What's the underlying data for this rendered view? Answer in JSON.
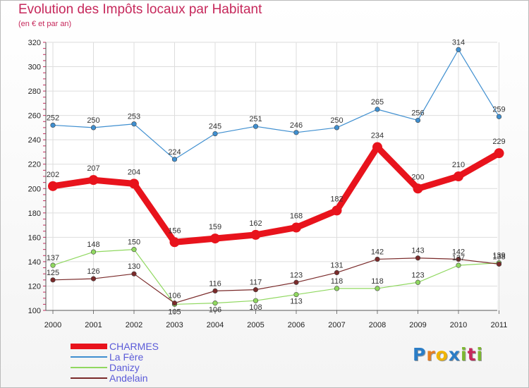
{
  "title": "Evolution des Impôts locaux par Habitant",
  "subtitle": "(en € et par an)",
  "logo": {
    "text": "Proxiti",
    "letters": [
      "P",
      "r",
      "o",
      "x",
      "i",
      "t",
      "i"
    ],
    "colors": [
      "#2b7dc6",
      "#e67e22",
      "#f0b400",
      "#2b7dc6",
      "#7cb82f",
      "#c6285b",
      "#7cb82f"
    ]
  },
  "chart_data": {
    "type": "line",
    "title": "Evolution des Impôts locaux par Habitant",
    "subtitle": "(en € et par an)",
    "xlabel": "",
    "ylabel": "",
    "categories": [
      "2000",
      "2001",
      "2002",
      "2003",
      "2004",
      "2005",
      "2006",
      "2007",
      "2008",
      "2009",
      "2010",
      "2011"
    ],
    "ylim": [
      100,
      320
    ],
    "yticks": [
      100,
      120,
      140,
      160,
      180,
      200,
      220,
      240,
      260,
      280,
      300,
      320
    ],
    "grid": true,
    "legend_position": "bottom-left",
    "series": [
      {
        "name": "CHARMES",
        "color": "#e8131c",
        "values": [
          202,
          207,
          204,
          156,
          159,
          162,
          168,
          182,
          234,
          200,
          210,
          229
        ],
        "labels": [
          "202",
          "207",
          "204",
          "156",
          "159",
          "162",
          "168",
          "182",
          "234",
          "200",
          "210",
          "229"
        ],
        "emphasis": true
      },
      {
        "name": "La Fère",
        "color": "#3f8fd0",
        "values": [
          252,
          250,
          253,
          224,
          245,
          251,
          246,
          250,
          265,
          256,
          314,
          259
        ],
        "labels": [
          "252",
          "250",
          "253",
          "224",
          "245",
          "251",
          "246",
          "250",
          "265",
          "256",
          "314",
          "259"
        ],
        "emphasis": false
      },
      {
        "name": "Danizy",
        "color": "#90d860",
        "values": [
          137,
          148,
          150,
          105,
          106,
          108,
          113,
          118,
          118,
          123,
          137,
          139
        ],
        "labels": [
          "137",
          "148",
          "150",
          "105",
          "106",
          "108",
          "113",
          "118",
          "118",
          "123",
          "137",
          "139"
        ],
        "emphasis": false
      },
      {
        "name": "Andelain",
        "color": "#7a2a2a",
        "values": [
          125,
          126,
          130,
          106,
          116,
          117,
          123,
          131,
          142,
          143,
          142,
          138
        ],
        "labels": [
          "125",
          "126",
          "130",
          "106",
          "116",
          "117",
          "123",
          "131",
          "142",
          "143",
          "142",
          "138"
        ],
        "emphasis": false
      }
    ]
  }
}
